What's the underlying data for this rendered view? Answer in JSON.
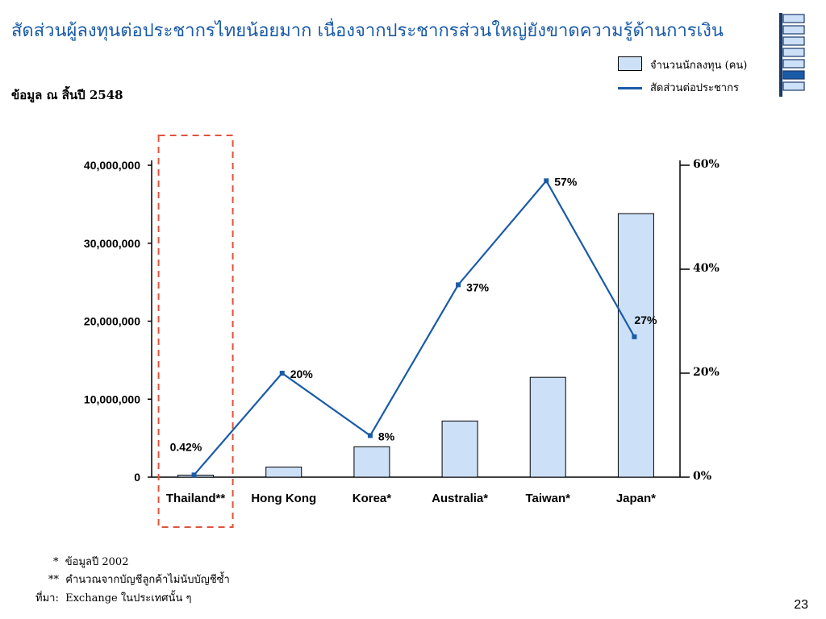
{
  "slide": {
    "title": "สัดส่วนผู้ลงทุนต่อประชากรไทยน้อยมาก เนื่องจากประชากรส่วนใหญ่ยังขาดความรู้ด้านการเงิน",
    "subtitle": "ข้อมูล ณ สิ้นปี 2548",
    "page_number": "23"
  },
  "legend": {
    "bar_label": "จำนวนนักลงทุน (คน)",
    "line_label": "สัดส่วนต่อประชากร"
  },
  "notes": {
    "note1_marker": "*",
    "note1_text": "ข้อมูลปี 2002",
    "note2_marker": "**",
    "note2_text": "คำนวณจากบัญชีลูกค้าไม่นับบัญชีซ้ำ",
    "source_marker": "ที่มา:",
    "source_text": "Exchange ในประเทศนั้น ๆ"
  },
  "colors": {
    "title": "#1a5ba8",
    "bar_fill": "#cce0f7",
    "line": "#1a5ba8",
    "highlight_box": "#e0533d"
  },
  "chart_data": {
    "type": "bar",
    "categories": [
      "Thailand**",
      "Hong Kong",
      "Korea*",
      "Australia*",
      "Taiwan*",
      "Japan*"
    ],
    "series": [
      {
        "name": "จำนวนนักลงทุน (คน)",
        "type": "bar",
        "axis": "left",
        "values": [
          260000,
          1300000,
          3900000,
          7200000,
          12800000,
          33800000
        ]
      },
      {
        "name": "สัดส่วนต่อประชากร",
        "type": "line",
        "axis": "right",
        "values": [
          0.42,
          20,
          8,
          37,
          57,
          27
        ],
        "labels": [
          "0.42%",
          "20%",
          "8%",
          "37%",
          "57%",
          "27%"
        ]
      }
    ],
    "ylim_left": [
      0,
      40000000
    ],
    "yticks_left": [
      "0",
      "10,000,000",
      "20,000,000",
      "30,000,000",
      "40,000,000"
    ],
    "ylim_right": [
      0,
      60
    ],
    "yticks_right": [
      "0%",
      "20%",
      "40%",
      "60%"
    ],
    "highlight_category": "Thailand**",
    "legend_position": "top-right",
    "grid": false
  }
}
